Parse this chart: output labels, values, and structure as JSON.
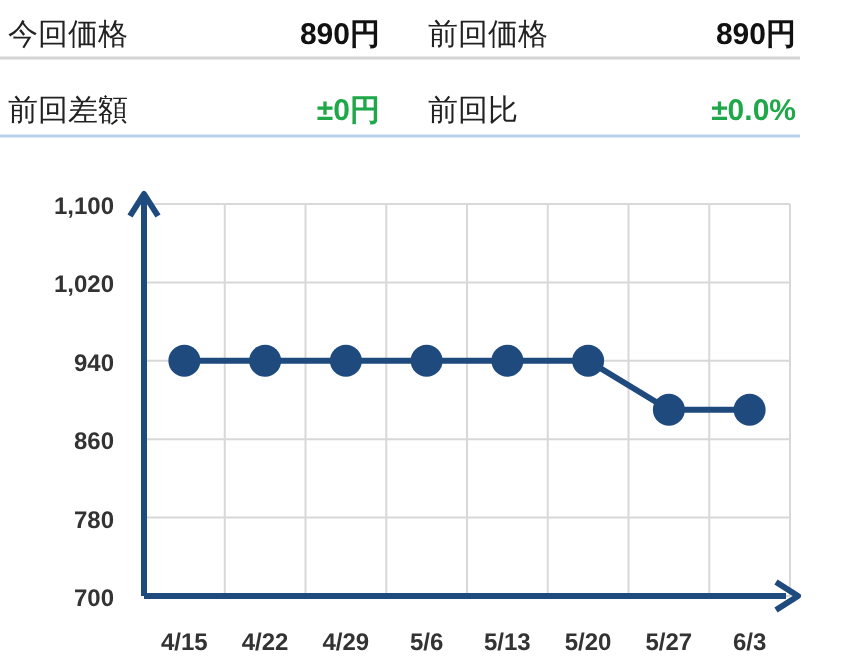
{
  "chart_data": [
    {
      "type": "other",
      "annotations": [
        "今回価格",
        "890円",
        "前回価格",
        "890円",
        "前回差額",
        "±0円",
        "前回比",
        "±0.0%"
      ]
    },
    {
      "type": "line",
      "categories": [
        "4/15",
        "4/22",
        "4/29",
        "5/6",
        "5/13",
        "5/20",
        "5/27",
        "6/3"
      ],
      "series": [
        {
          "color": "#1f4a7e",
          "values": [
            940,
            940,
            940,
            940,
            940,
            940,
            890,
            890
          ]
        }
      ],
      "ylim": [
        700,
        1100
      ],
      "yticks": [
        700,
        780,
        860,
        940,
        {
          "value": 1020,
          "label": "1,020"
        },
        {
          "value": 1100,
          "label": "1,100"
        }
      ],
      "grid": true,
      "marker": "circle"
    }
  ]
}
